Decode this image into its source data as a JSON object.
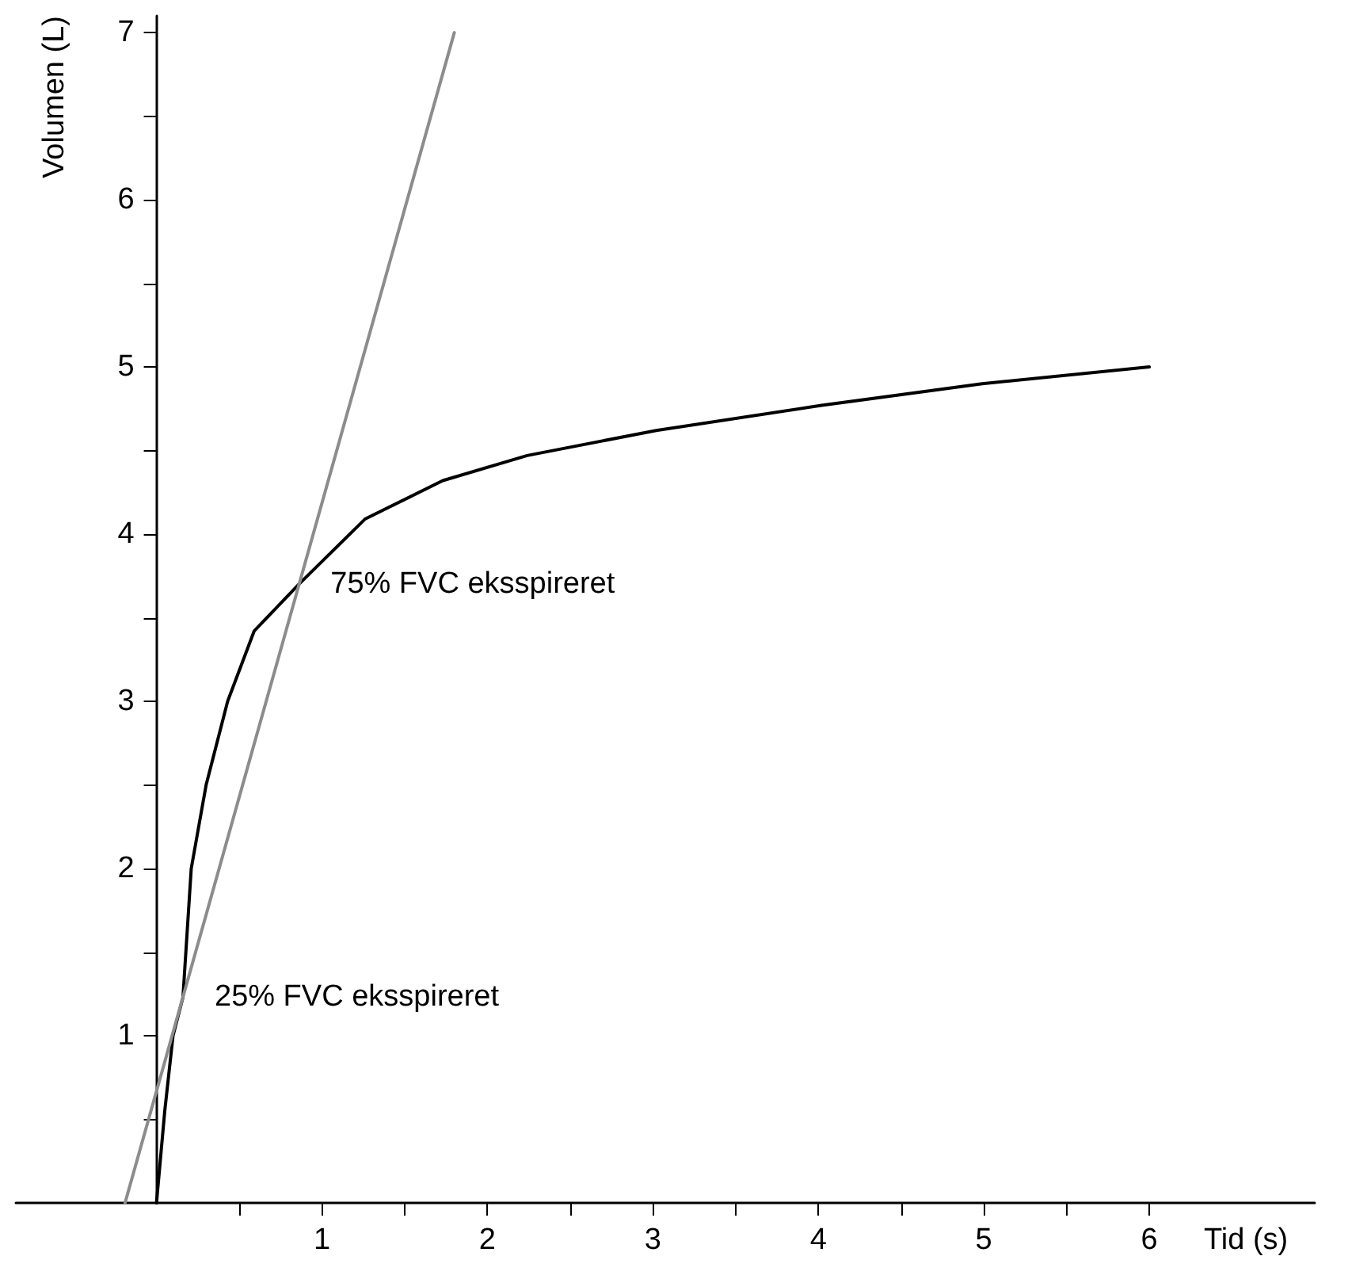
{
  "chart_data": {
    "type": "line",
    "xlabel": "Tid (s)",
    "ylabel": "Volumen (L)",
    "xlim": [
      -0.85,
      7
    ],
    "ylim": [
      0,
      7.1
    ],
    "xticks": [
      {
        "value": 0.5,
        "label": null
      },
      1,
      {
        "value": 1.5,
        "label": null
      },
      2,
      {
        "value": 2.5,
        "label": null
      },
      3,
      {
        "value": 3.5,
        "label": null
      },
      4,
      {
        "value": 4.5,
        "label": null
      },
      5,
      {
        "value": 5.5,
        "label": null
      },
      6
    ],
    "yticks": [
      {
        "value": 0.5,
        "label": null
      },
      1,
      {
        "value": 1.5,
        "label": null
      },
      2,
      {
        "value": 2.5,
        "label": null
      },
      3,
      {
        "value": 3.5,
        "label": null
      },
      4,
      {
        "value": 4.5,
        "label": null
      },
      5,
      {
        "value": 5.5,
        "label": null
      },
      6,
      {
        "value": 6.5,
        "label": null
      },
      7
    ],
    "grid": false,
    "marker": "none",
    "line_style": "solid",
    "series": [
      {
        "color": "#000000",
        "x": [
          0,
          0.05,
          0.1,
          0.16,
          0.21,
          0.3,
          0.43,
          0.59,
          0.86,
          1.26,
          1.73,
          2.24,
          3.02,
          4.02,
          4.99,
          6
        ],
        "values": [
          0,
          0.55,
          1.0,
          1.23,
          2.0,
          2.5,
          3.0,
          3.42,
          3.7,
          4.09,
          4.32,
          4.47,
          4.62,
          4.77,
          4.9,
          5.0
        ]
      },
      {
        "color": "#8c8c8c",
        "x": [
          -0.19,
          1.8
        ],
        "values": [
          0,
          7.0
        ]
      }
    ],
    "annotations": [
      {
        "text": "25% FVC eksspireret",
        "x": 0.16,
        "y": 1.23
      },
      {
        "text": "75% FVC eksspireret",
        "x": 0.86,
        "y": 3.7
      }
    ]
  }
}
